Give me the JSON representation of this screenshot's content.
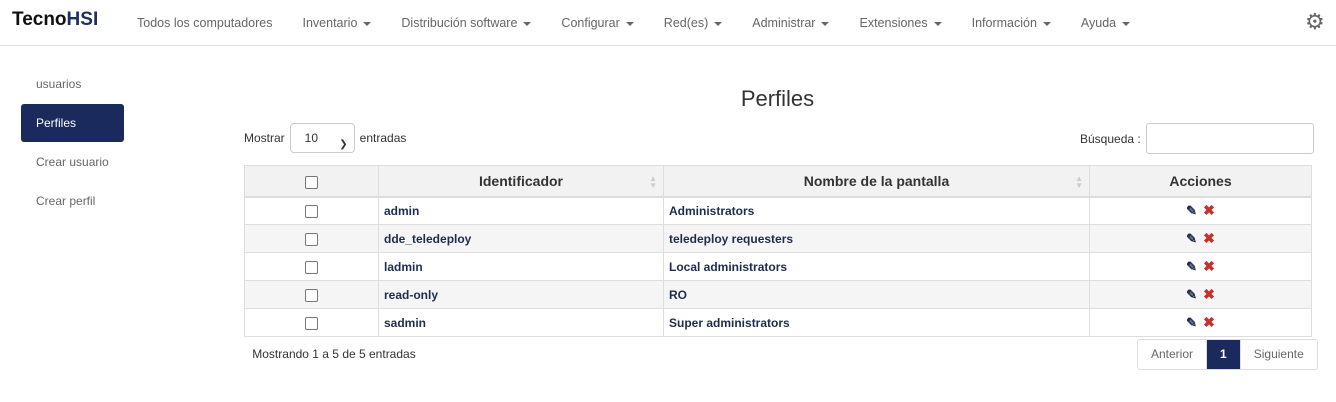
{
  "brand": {
    "part1": "Tecno",
    "part2": "HSI"
  },
  "menu": [
    {
      "label": "Todos los computadores",
      "dropdown": false
    },
    {
      "label": "Inventario",
      "dropdown": true
    },
    {
      "label": "Distribución software",
      "dropdown": true
    },
    {
      "label": "Configurar",
      "dropdown": true
    },
    {
      "label": "Red(es)",
      "dropdown": true
    },
    {
      "label": "Administrar",
      "dropdown": true
    },
    {
      "label": "Extensiones",
      "dropdown": true
    },
    {
      "label": "Información",
      "dropdown": true
    },
    {
      "label": "Ayuda",
      "dropdown": true
    }
  ],
  "sidebar": {
    "items": [
      {
        "label": "usuarios"
      },
      {
        "label": "Perfiles",
        "active": true
      },
      {
        "label": "Crear usuario"
      },
      {
        "label": "Crear perfil"
      }
    ]
  },
  "page_title": "Perfiles",
  "length": {
    "prefix": "Mostrar",
    "value": "10",
    "suffix": "entradas"
  },
  "search": {
    "label": "Búsqueda :",
    "value": ""
  },
  "table": {
    "headers": [
      "",
      "Identificador",
      "Nombre de la pantalla",
      "Acciones"
    ],
    "rows": [
      [
        "admin",
        "Administrators"
      ],
      [
        "dde_teledeploy",
        "teledeploy requesters"
      ],
      [
        "ladmin",
        "Local administrators"
      ],
      [
        "read-only",
        "RO"
      ],
      [
        "sadmin",
        "Super administrators"
      ]
    ]
  },
  "info": "Mostrando 1 a 5 de 5 entradas",
  "pagination": {
    "prev": "Anterior",
    "current": "1",
    "next": "Siguiente"
  },
  "colors": {
    "accent": "#1b2a5c",
    "delete": "#c9302c"
  }
}
